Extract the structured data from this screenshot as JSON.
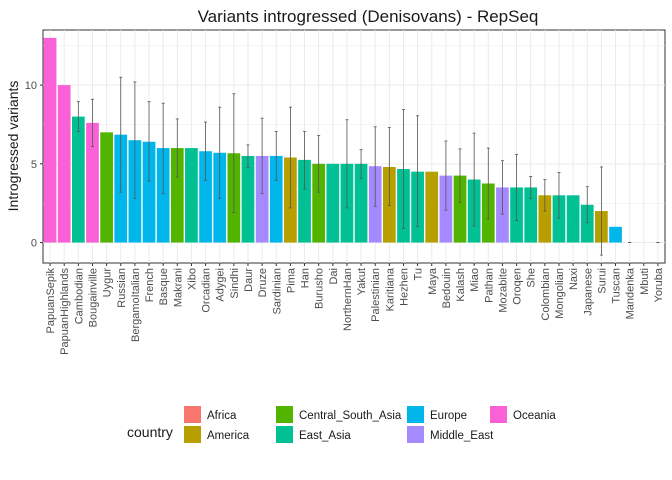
{
  "chart_data": {
    "type": "bar",
    "title": "Variants introgressed (Denisovans) - RepSeq",
    "xlabel": "",
    "ylabel": "Introgressed variants",
    "ylim": [
      -1.3,
      13.5
    ],
    "yticks": [
      0,
      5,
      10
    ],
    "grid": true,
    "legend": {
      "title": "country",
      "position": "bottom",
      "entries": [
        {
          "name": "Africa",
          "color": "#F8766D"
        },
        {
          "name": "America",
          "color": "#B79F00"
        },
        {
          "name": "Central_South_Asia",
          "color": "#53B400"
        },
        {
          "name": "East_Asia",
          "color": "#00C094"
        },
        {
          "name": "Europe",
          "color": "#00B6EB"
        },
        {
          "name": "Middle_East",
          "color": "#A58AFF"
        },
        {
          "name": "Oceania",
          "color": "#FB61D7"
        }
      ]
    },
    "categories": [
      "PapuanSepik",
      "PapuanHighlands",
      "Cambodian",
      "Bougainville",
      "Uygur",
      "Russian",
      "BergamoItalian",
      "French",
      "Basque",
      "Makrani",
      "Xibo",
      "Orcadian",
      "Adygei",
      "Sindhi",
      "Daur",
      "Druze",
      "Sardinian",
      "Pima",
      "Han",
      "Burusho",
      "Dai",
      "NorthernHan",
      "Yakut",
      "Palestinian",
      "Karitiana",
      "Hezhen",
      "Tu",
      "Maya",
      "Bedouin",
      "Kalash",
      "Miao",
      "Pathan",
      "Mozabite",
      "Oroqen",
      "She",
      "Colombian",
      "Mongolian",
      "Naxi",
      "Japanese",
      "Surui",
      "Tuscan",
      "Mandenka",
      "Mbuti",
      "Yoruba"
    ],
    "values": [
      13,
      10,
      8,
      7.6,
      7,
      6.85,
      6.5,
      6.4,
      6,
      6,
      6,
      5.8,
      5.7,
      5.67,
      5.5,
      5.5,
      5.5,
      5.4,
      5.25,
      5,
      5,
      5,
      5,
      4.85,
      4.8,
      4.67,
      4.5,
      4.5,
      4.25,
      4.25,
      4,
      3.75,
      3.5,
      3.5,
      3.5,
      3,
      3,
      3,
      2.4,
      2,
      1,
      0,
      0,
      0
    ],
    "err_low": [
      null,
      null,
      7.05,
      6.1,
      null,
      3.2,
      2.8,
      3.9,
      3.1,
      4.15,
      null,
      3.95,
      2.8,
      1.9,
      4.75,
      3.1,
      3.95,
      2.2,
      3.4,
      3.2,
      null,
      2.2,
      4.05,
      2.3,
      2.35,
      0.9,
      1,
      null,
      2.05,
      2.55,
      1.05,
      1.5,
      1.8,
      1.4,
      2.8,
      2,
      1.55,
      null,
      1.25,
      -0.8,
      null,
      0,
      null,
      0
    ],
    "err_high": [
      null,
      null,
      8.95,
      9.1,
      null,
      10.5,
      10.2,
      8.95,
      8.85,
      7.85,
      null,
      7.65,
      8.6,
      9.45,
      6.2,
      7.9,
      7.05,
      8.6,
      7.05,
      6.8,
      null,
      7.8,
      5.9,
      7.35,
      7.3,
      8.45,
      8.05,
      null,
      6.45,
      5.95,
      6.95,
      6,
      5.2,
      5.6,
      4.2,
      4,
      4.45,
      null,
      3.55,
      4.8,
      null,
      0,
      null,
      0
    ],
    "groups": [
      "Oceania",
      "Oceania",
      "East_Asia",
      "Oceania",
      "Central_South_Asia",
      "Europe",
      "Europe",
      "Europe",
      "Europe",
      "Central_South_Asia",
      "East_Asia",
      "Europe",
      "Europe",
      "Central_South_Asia",
      "East_Asia",
      "Middle_East",
      "Europe",
      "America",
      "East_Asia",
      "Central_South_Asia",
      "East_Asia",
      "East_Asia",
      "East_Asia",
      "Middle_East",
      "America",
      "East_Asia",
      "East_Asia",
      "America",
      "Middle_East",
      "Central_South_Asia",
      "East_Asia",
      "Central_South_Asia",
      "Middle_East",
      "East_Asia",
      "East_Asia",
      "America",
      "East_Asia",
      "East_Asia",
      "East_Asia",
      "America",
      "Europe",
      "Africa",
      "Africa",
      "Africa"
    ]
  }
}
